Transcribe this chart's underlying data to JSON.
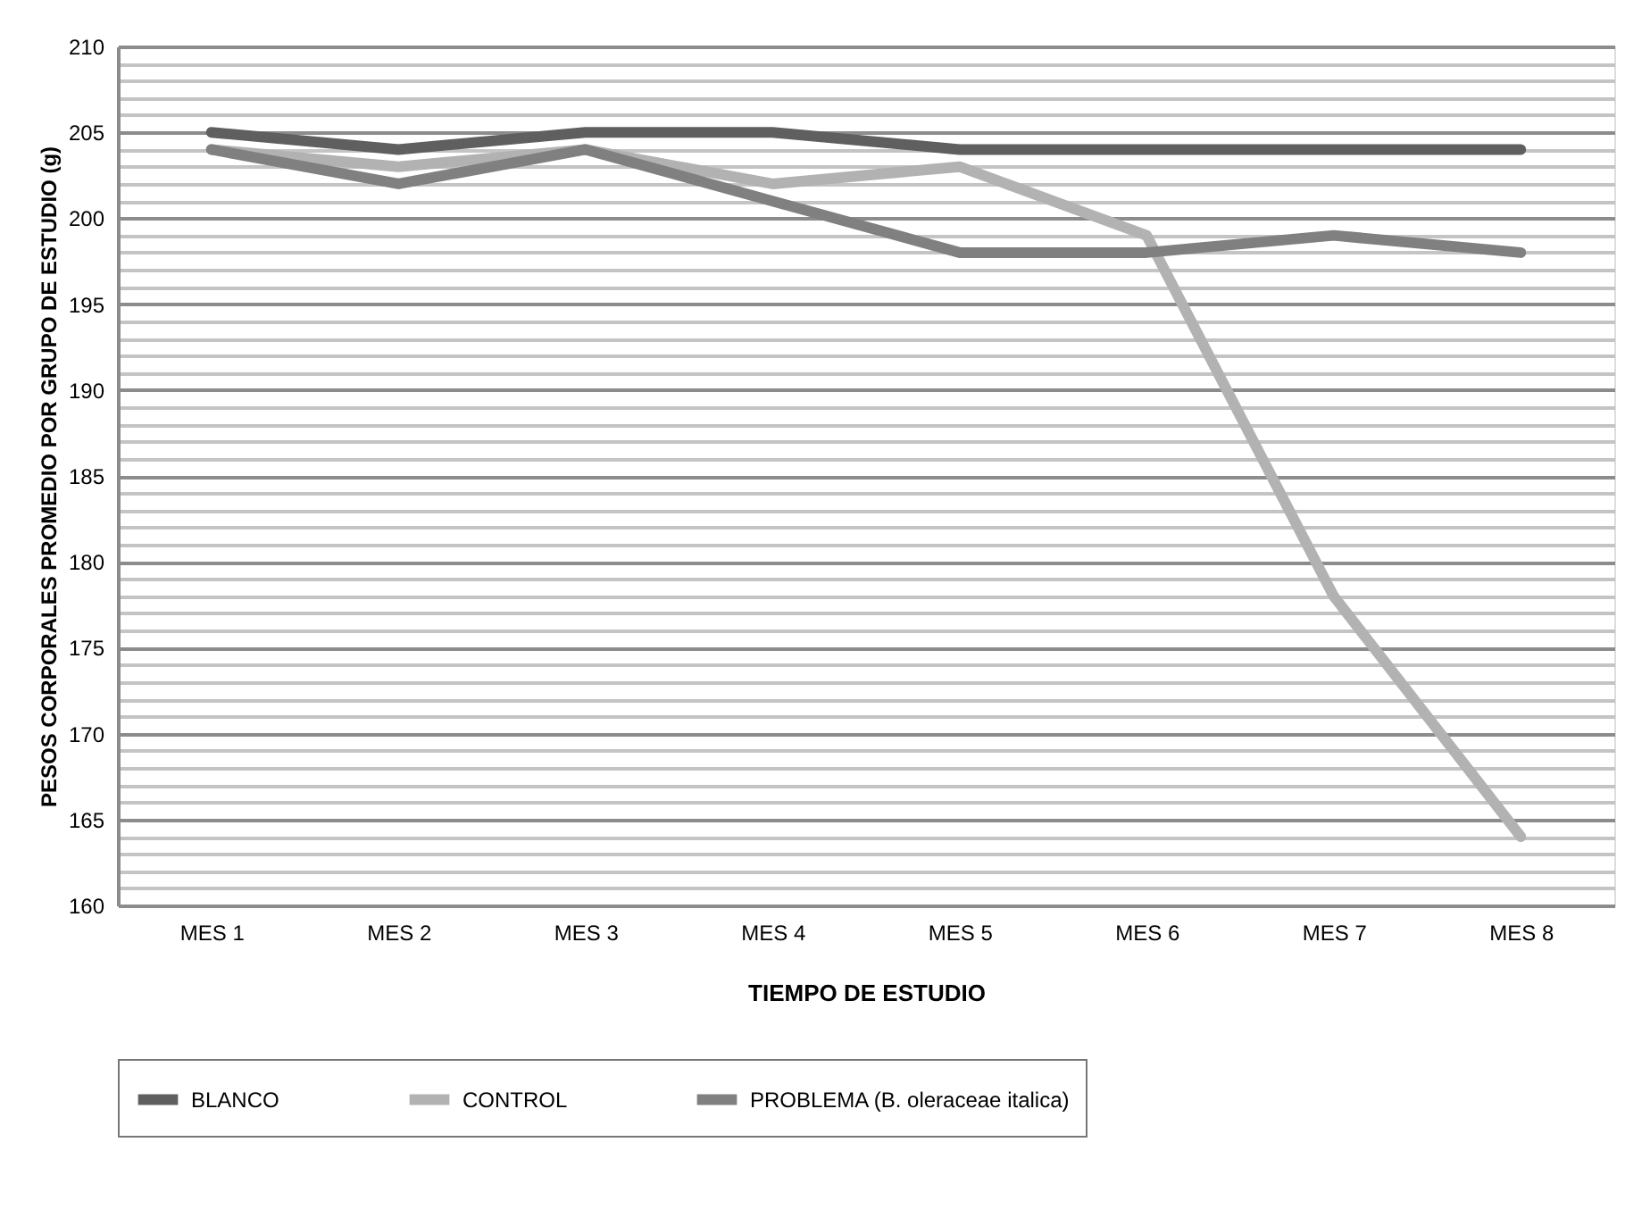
{
  "chart_data": {
    "type": "line",
    "xlabel": "TIEMPO DE ESTUDIO",
    "ylabel": "PESOS CORPORALES PROMEDIO POR GRUPO DE ESTUDIO (g)",
    "categories": [
      "MES 1",
      "MES 2",
      "MES 3",
      "MES 4",
      "MES 5",
      "MES 6",
      "MES 7",
      "MES 8"
    ],
    "series": [
      {
        "name": "BLANCO",
        "color": "#5f5f5f",
        "values": [
          205,
          204,
          205,
          205,
          204,
          204,
          204,
          204
        ]
      },
      {
        "name": "CONTROL",
        "color": "#b2b2b2",
        "values": [
          204,
          203,
          204,
          202,
          203,
          199,
          178,
          164
        ]
      },
      {
        "name": "PROBLEMA (B. oleraceae italica)",
        "color": "#808080",
        "values": [
          204,
          202,
          204,
          201,
          198,
          198,
          199,
          198
        ]
      }
    ],
    "ylim": [
      160,
      210
    ],
    "yticks": [
      160,
      {
        "value": 161,
        "label": null
      },
      {
        "value": 162,
        "label": null
      },
      {
        "value": 163,
        "label": null
      },
      {
        "value": 164,
        "label": null
      },
      165,
      {
        "value": 166,
        "label": null
      },
      {
        "value": 167,
        "label": null
      },
      {
        "value": 168,
        "label": null
      },
      {
        "value": 169,
        "label": null
      },
      170,
      {
        "value": 171,
        "label": null
      },
      {
        "value": 172,
        "label": null
      },
      {
        "value": 173,
        "label": null
      },
      {
        "value": 174,
        "label": null
      },
      175,
      {
        "value": 176,
        "label": null
      },
      {
        "value": 177,
        "label": null
      },
      {
        "value": 178,
        "label": null
      },
      {
        "value": 179,
        "label": null
      },
      180,
      {
        "value": 181,
        "label": null
      },
      {
        "value": 182,
        "label": null
      },
      {
        "value": 183,
        "label": null
      },
      {
        "value": 184,
        "label": null
      },
      185,
      {
        "value": 186,
        "label": null
      },
      {
        "value": 187,
        "label": null
      },
      {
        "value": 188,
        "label": null
      },
      {
        "value": 189,
        "label": null
      },
      190,
      {
        "value": 191,
        "label": null
      },
      {
        "value": 192,
        "label": null
      },
      {
        "value": 193,
        "label": null
      },
      {
        "value": 194,
        "label": null
      },
      195,
      {
        "value": 196,
        "label": null
      },
      {
        "value": 197,
        "label": null
      },
      {
        "value": 198,
        "label": null
      },
      {
        "value": 199,
        "label": null
      },
      200,
      {
        "value": 201,
        "label": null
      },
      {
        "value": 202,
        "label": null
      },
      {
        "value": 203,
        "label": null
      },
      {
        "value": 204,
        "label": null
      },
      205,
      {
        "value": 206,
        "label": null
      },
      {
        "value": 207,
        "label": null
      },
      {
        "value": 208,
        "label": null
      },
      {
        "value": 209,
        "label": null
      },
      210
    ],
    "grid": "y",
    "legend": "bottom",
    "marker": "none",
    "line_style": "solid"
  }
}
